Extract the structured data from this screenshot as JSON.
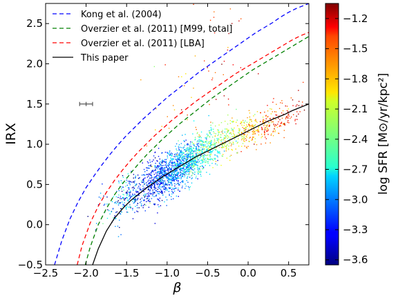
{
  "chart_data": {
    "type": "scatter",
    "xlabel": "β",
    "ylabel": "IRX",
    "xlim": [
      -2.5,
      0.75
    ],
    "ylim": [
      -0.5,
      2.75
    ],
    "x_ticks": [
      {
        "value": -2.5,
        "label": "−2.5"
      },
      {
        "value": -2.0,
        "label": "−2.0"
      },
      {
        "value": -1.5,
        "label": "−1.5"
      },
      {
        "value": -1.0,
        "label": "−1.0"
      },
      {
        "value": -0.5,
        "label": "−0.5"
      },
      {
        "value": 0.0,
        "label": "0.0"
      },
      {
        "value": 0.5,
        "label": "0.5"
      }
    ],
    "y_ticks": [
      {
        "value": -0.5,
        "label": "−0.5"
      },
      {
        "value": 0.0,
        "label": "0.0"
      },
      {
        "value": 0.5,
        "label": "0.5"
      },
      {
        "value": 1.0,
        "label": "1.0"
      },
      {
        "value": 1.5,
        "label": "1.5"
      },
      {
        "value": 2.0,
        "label": "2.0"
      },
      {
        "value": 2.5,
        "label": "2.5"
      }
    ],
    "grid": false,
    "legend_position": "top-left",
    "series": [
      {
        "name": "Kong et al. (2004)",
        "style": "dashed",
        "color": "#0000ff",
        "x": [
          -2.39,
          -2.3,
          -2.2,
          -2.1,
          -2.0,
          -1.9,
          -1.8,
          -1.7,
          -1.6,
          -1.5,
          -1.4,
          -1.3,
          -1.2,
          -1.1,
          -1.0,
          -0.9,
          -0.8,
          -0.7,
          -0.6,
          -0.5,
          -0.4,
          -0.3,
          -0.2,
          -0.1,
          0.0,
          0.1,
          0.2,
          0.3,
          0.4,
          0.5,
          0.6,
          0.75
        ],
        "y": [
          -0.5,
          -0.2,
          0.07,
          0.28,
          0.46,
          0.61,
          0.75,
          0.88,
          1.0,
          1.11,
          1.21,
          1.31,
          1.4,
          1.49,
          1.58,
          1.66,
          1.74,
          1.82,
          1.9,
          1.97,
          2.04,
          2.11,
          2.18,
          2.25,
          2.32,
          2.39,
          2.45,
          2.51,
          2.58,
          2.64,
          2.69,
          2.75
        ]
      },
      {
        "name": "Overzier et al. (2011) [M99, total]",
        "style": "dashed",
        "color": "#008000",
        "x": [
          -2.01,
          -1.95,
          -1.85,
          -1.75,
          -1.65,
          -1.55,
          -1.45,
          -1.35,
          -1.25,
          -1.15,
          -1.05,
          -0.95,
          -0.85,
          -0.75,
          -0.65,
          -0.55,
          -0.45,
          -0.35,
          -0.25,
          -0.15,
          -0.05,
          0.05,
          0.15,
          0.25,
          0.35,
          0.45,
          0.55,
          0.65,
          0.75
        ],
        "y": [
          -0.5,
          -0.28,
          0.0,
          0.2,
          0.37,
          0.51,
          0.64,
          0.76,
          0.87,
          0.97,
          1.07,
          1.16,
          1.25,
          1.33,
          1.41,
          1.49,
          1.57,
          1.64,
          1.71,
          1.78,
          1.85,
          1.92,
          1.98,
          2.04,
          2.1,
          2.16,
          2.22,
          2.28,
          2.34
        ]
      },
      {
        "name": "Overzier et al. (2011) [LBA]",
        "style": "dashed",
        "color": "#ff0000",
        "x": [
          -2.11,
          -2.05,
          -1.95,
          -1.85,
          -1.75,
          -1.65,
          -1.55,
          -1.45,
          -1.35,
          -1.25,
          -1.15,
          -1.05,
          -0.95,
          -0.85,
          -0.75,
          -0.65,
          -0.55,
          -0.45,
          -0.35,
          -0.25,
          -0.15,
          -0.05,
          0.05,
          0.15,
          0.25,
          0.35,
          0.45,
          0.55,
          0.65,
          0.75
        ],
        "y": [
          -0.5,
          -0.26,
          0.02,
          0.23,
          0.4,
          0.55,
          0.68,
          0.8,
          0.91,
          1.01,
          1.11,
          1.2,
          1.29,
          1.37,
          1.45,
          1.53,
          1.6,
          1.67,
          1.74,
          1.81,
          1.88,
          1.94,
          2.0,
          2.06,
          2.12,
          2.18,
          2.24,
          2.3,
          2.35,
          2.39
        ]
      },
      {
        "name": "This paper",
        "style": "solid",
        "color": "#000000",
        "x": [
          -1.92,
          -1.85,
          -1.75,
          -1.65,
          -1.55,
          -1.45,
          -1.35,
          -1.25,
          -1.15,
          -1.05,
          -0.95,
          -0.85,
          -0.75,
          -0.65,
          -0.55,
          -0.45,
          -0.35,
          -0.25,
          -0.15,
          -0.05,
          0.05,
          0.15,
          0.25,
          0.35,
          0.45,
          0.55,
          0.65,
          0.75
        ],
        "y": [
          -0.5,
          -0.3,
          -0.08,
          0.08,
          0.2,
          0.3,
          0.38,
          0.46,
          0.53,
          0.6,
          0.66,
          0.72,
          0.78,
          0.84,
          0.89,
          0.94,
          0.99,
          1.04,
          1.09,
          1.14,
          1.19,
          1.24,
          1.29,
          1.33,
          1.37,
          1.42,
          1.46,
          1.5
        ]
      }
    ],
    "scatter_clusters": [
      {
        "x": -1.0,
        "y": 0.62,
        "sx": 0.26,
        "sy": 0.13,
        "n": 1100,
        "cval": -3.15
      },
      {
        "x": -0.75,
        "y": 0.78,
        "sx": 0.22,
        "sy": 0.13,
        "n": 500,
        "cval": -2.75
      },
      {
        "x": -0.35,
        "y": 1.05,
        "sx": 0.25,
        "sy": 0.1,
        "n": 320,
        "cval": -2.25
      },
      {
        "x": 0.15,
        "y": 1.2,
        "sx": 0.2,
        "sy": 0.1,
        "n": 220,
        "cval": -1.75
      },
      {
        "x": 0.45,
        "y": 1.3,
        "sx": 0.12,
        "sy": 0.08,
        "n": 60,
        "cval": -1.45
      },
      {
        "x": -1.55,
        "y": 0.3,
        "sx": 0.12,
        "sy": 0.15,
        "n": 120,
        "cval": -2.8
      },
      {
        "x": -0.6,
        "y": 1.75,
        "sx": 0.3,
        "sy": 0.4,
        "n": 60,
        "cval": -1.6
      }
    ],
    "error_bar": {
      "x": -2.0,
      "y": 1.5,
      "xerr": 0.08,
      "yerr": 0.02
    },
    "colorbar": {
      "label": "log SFR [M⊙/yr/kpc²]",
      "range": [
        -3.65,
        -1.05
      ],
      "ticks": [
        {
          "value": -1.2,
          "label": "−1.2"
        },
        {
          "value": -1.5,
          "label": "−1.5"
        },
        {
          "value": -1.8,
          "label": "−1.8"
        },
        {
          "value": -2.1,
          "label": "−2.1"
        },
        {
          "value": -2.4,
          "label": "−2.4"
        },
        {
          "value": -2.7,
          "label": "−2.7"
        },
        {
          "value": -3.0,
          "label": "−3.0"
        },
        {
          "value": -3.3,
          "label": "−3.3"
        },
        {
          "value": -3.6,
          "label": "−3.6"
        }
      ],
      "colormap": "jet"
    }
  }
}
